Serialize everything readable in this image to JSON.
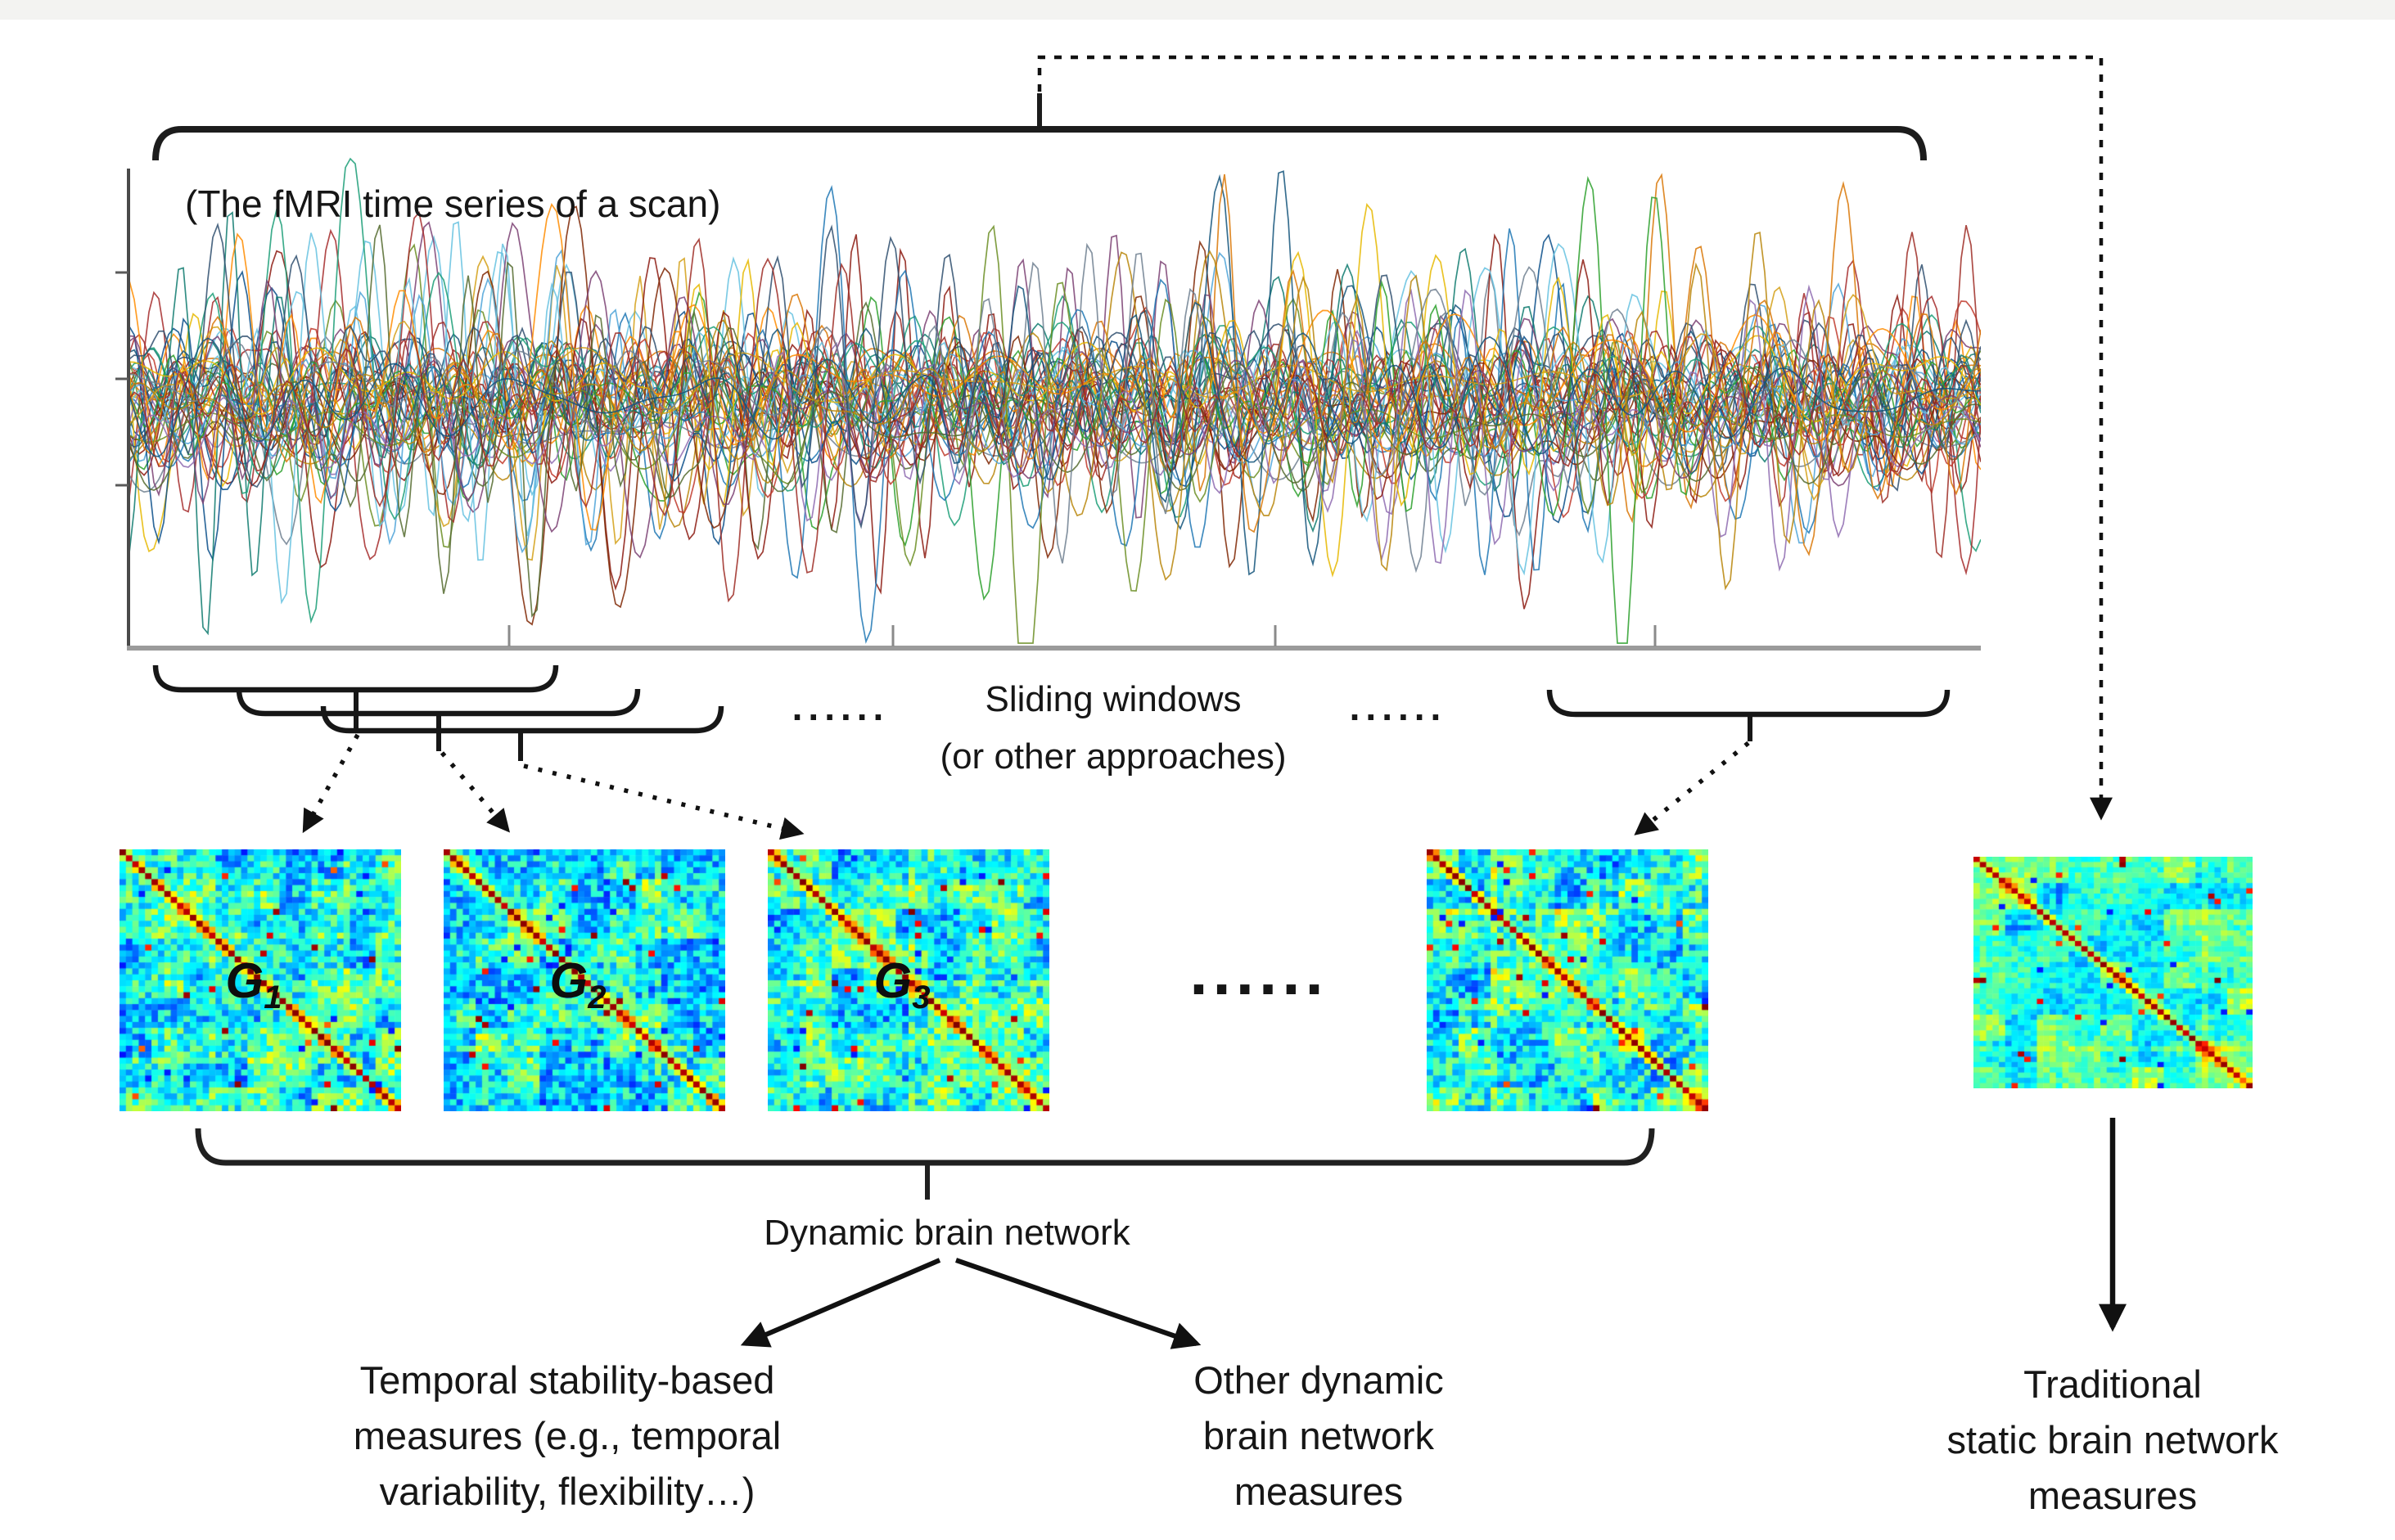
{
  "figure": {
    "plot_label": "(The fMRI time series of a scan)",
    "sliding": {
      "dots_left": "......",
      "line1": "Sliding windows",
      "line2": "(or other approaches)",
      "dots_right": "......"
    },
    "matrices": {
      "g_labels": [
        {
          "base": "G",
          "sub": "1"
        },
        {
          "base": "G",
          "sub": "2"
        },
        {
          "base": "G",
          "sub": "3"
        }
      ],
      "row_dots": "......",
      "colormap": "jet"
    },
    "dynamic_label": "Dynamic brain network",
    "branch_left": [
      "Temporal stability-based",
      "measures (e.g., temporal",
      "variability, flexibility…)"
    ],
    "branch_right": [
      "Other dynamic",
      "brain network",
      "measures"
    ],
    "branch_static": [
      "Traditional",
      "static brain network",
      "measures"
    ]
  },
  "timeseries": {
    "num_lines": 48,
    "colors": [
      "#8c1a11",
      "#a52a2a",
      "#c0392b",
      "#7f2704",
      "#0b4f8a",
      "#1f77b4",
      "#4ea3d8",
      "#66c2e0",
      "#0e7a6e",
      "#1b9e77",
      "#2ca02c",
      "#6b8e23",
      "#d4a017",
      "#e6b800",
      "#ff8c00",
      "#d97706",
      "#7b4173",
      "#8e6bb0",
      "#556b2f",
      "#2f4f6f",
      "#b8860b",
      "#708090",
      "#9e2b25",
      "#14557b"
    ]
  },
  "line_color": "#1b1b1b",
  "axis_color": "#9b9b9b"
}
